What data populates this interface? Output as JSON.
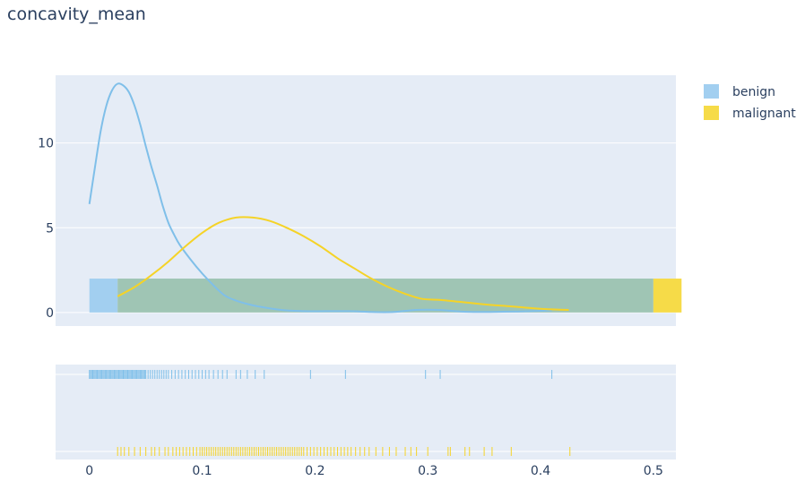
{
  "chart_data": {
    "type": "line",
    "title": "concavity_mean",
    "xlabel": "",
    "ylabel": "",
    "xlim": [
      -0.03,
      0.52
    ],
    "ylim_density": [
      -0.8,
      14.0
    ],
    "x_ticks": [
      0,
      0.1,
      0.2,
      0.3,
      0.4,
      0.5
    ],
    "x_tick_labels": [
      "0",
      "0.1",
      "0.2",
      "0.3",
      "0.4",
      "0.5"
    ],
    "y_ticks": [
      0,
      5,
      10
    ],
    "y_tick_labels": [
      "0",
      "5",
      "10"
    ],
    "grid": true,
    "legend_position": "top-right",
    "colors": {
      "benign": "#7fbfe9",
      "malignant": "#f5d327",
      "overlap": "#9fc5b4",
      "plot_bg": "#e5ecf6",
      "grid": "#ffffff"
    },
    "series": [
      {
        "name": "benign",
        "color": "#7fbfe9",
        "histogram": {
          "bins": [
            [
              0.0,
              0.025,
              2.0
            ],
            [
              0.025,
              0.5,
              2.0
            ]
          ]
        },
        "kde": {
          "x": [
            0.0,
            0.005,
            0.01,
            0.015,
            0.02,
            0.025,
            0.03,
            0.035,
            0.04,
            0.045,
            0.05,
            0.055,
            0.06,
            0.065,
            0.07,
            0.075,
            0.08,
            0.09,
            0.1,
            0.11,
            0.12,
            0.13,
            0.14,
            0.15,
            0.17,
            0.19,
            0.21,
            0.23,
            0.25,
            0.27,
            0.29,
            0.31,
            0.33,
            0.35,
            0.37,
            0.39,
            0.41
          ],
          "y": [
            6.4,
            8.6,
            10.7,
            12.2,
            13.1,
            13.5,
            13.4,
            13.0,
            12.2,
            11.1,
            9.8,
            8.6,
            7.5,
            6.3,
            5.3,
            4.6,
            4.0,
            3.1,
            2.3,
            1.6,
            1.0,
            0.7,
            0.5,
            0.35,
            0.15,
            0.08,
            0.08,
            0.08,
            0.03,
            0.03,
            0.15,
            0.15,
            0.05,
            0.03,
            0.05,
            0.08,
            0.12
          ]
        },
        "rug": [
          0.0,
          0.001,
          0.002,
          0.003,
          0.004,
          0.005,
          0.006,
          0.007,
          0.008,
          0.009,
          0.01,
          0.011,
          0.012,
          0.013,
          0.014,
          0.015,
          0.016,
          0.017,
          0.018,
          0.019,
          0.02,
          0.021,
          0.022,
          0.023,
          0.024,
          0.025,
          0.026,
          0.027,
          0.028,
          0.029,
          0.03,
          0.031,
          0.032,
          0.033,
          0.034,
          0.035,
          0.036,
          0.037,
          0.038,
          0.039,
          0.04,
          0.041,
          0.042,
          0.043,
          0.044,
          0.045,
          0.046,
          0.047,
          0.048,
          0.049,
          0.05,
          0.052,
          0.054,
          0.056,
          0.058,
          0.06,
          0.062,
          0.064,
          0.066,
          0.068,
          0.07,
          0.073,
          0.076,
          0.079,
          0.082,
          0.085,
          0.088,
          0.091,
          0.094,
          0.097,
          0.1,
          0.103,
          0.106,
          0.11,
          0.114,
          0.118,
          0.122,
          0.13,
          0.134,
          0.14,
          0.147,
          0.155,
          0.196,
          0.227,
          0.298,
          0.311,
          0.41
        ]
      },
      {
        "name": "malignant",
        "color": "#f5d327",
        "histogram": {
          "bins": [
            [
              0.025,
              0.5,
              2.0
            ],
            [
              0.5,
              0.525,
              2.0
            ]
          ]
        },
        "kde": {
          "x": [
            0.025,
            0.04,
            0.055,
            0.07,
            0.085,
            0.1,
            0.115,
            0.13,
            0.145,
            0.16,
            0.175,
            0.19,
            0.205,
            0.22,
            0.235,
            0.25,
            0.265,
            0.28,
            0.295,
            0.31,
            0.325,
            0.34,
            0.355,
            0.37,
            0.385,
            0.4,
            0.415,
            0.425
          ],
          "y": [
            0.95,
            1.5,
            2.2,
            3.0,
            3.9,
            4.7,
            5.3,
            5.6,
            5.6,
            5.4,
            5.0,
            4.5,
            3.9,
            3.2,
            2.6,
            2.0,
            1.5,
            1.1,
            0.8,
            0.75,
            0.65,
            0.55,
            0.45,
            0.38,
            0.3,
            0.22,
            0.17,
            0.15
          ]
        },
        "rug": [
          0.025,
          0.028,
          0.031,
          0.035,
          0.04,
          0.045,
          0.05,
          0.055,
          0.058,
          0.062,
          0.067,
          0.07,
          0.074,
          0.077,
          0.08,
          0.083,
          0.086,
          0.089,
          0.092,
          0.095,
          0.098,
          0.1,
          0.102,
          0.104,
          0.106,
          0.108,
          0.11,
          0.112,
          0.114,
          0.116,
          0.118,
          0.12,
          0.122,
          0.124,
          0.126,
          0.128,
          0.13,
          0.132,
          0.134,
          0.136,
          0.138,
          0.14,
          0.142,
          0.144,
          0.146,
          0.148,
          0.15,
          0.152,
          0.154,
          0.156,
          0.158,
          0.16,
          0.162,
          0.164,
          0.166,
          0.168,
          0.17,
          0.172,
          0.174,
          0.176,
          0.178,
          0.18,
          0.182,
          0.184,
          0.186,
          0.188,
          0.19,
          0.193,
          0.196,
          0.199,
          0.202,
          0.205,
          0.208,
          0.211,
          0.214,
          0.217,
          0.22,
          0.223,
          0.226,
          0.229,
          0.232,
          0.236,
          0.24,
          0.244,
          0.248,
          0.254,
          0.26,
          0.266,
          0.272,
          0.28,
          0.285,
          0.29,
          0.3,
          0.318,
          0.32,
          0.333,
          0.337,
          0.35,
          0.357,
          0.374,
          0.426
        ]
      }
    ]
  }
}
